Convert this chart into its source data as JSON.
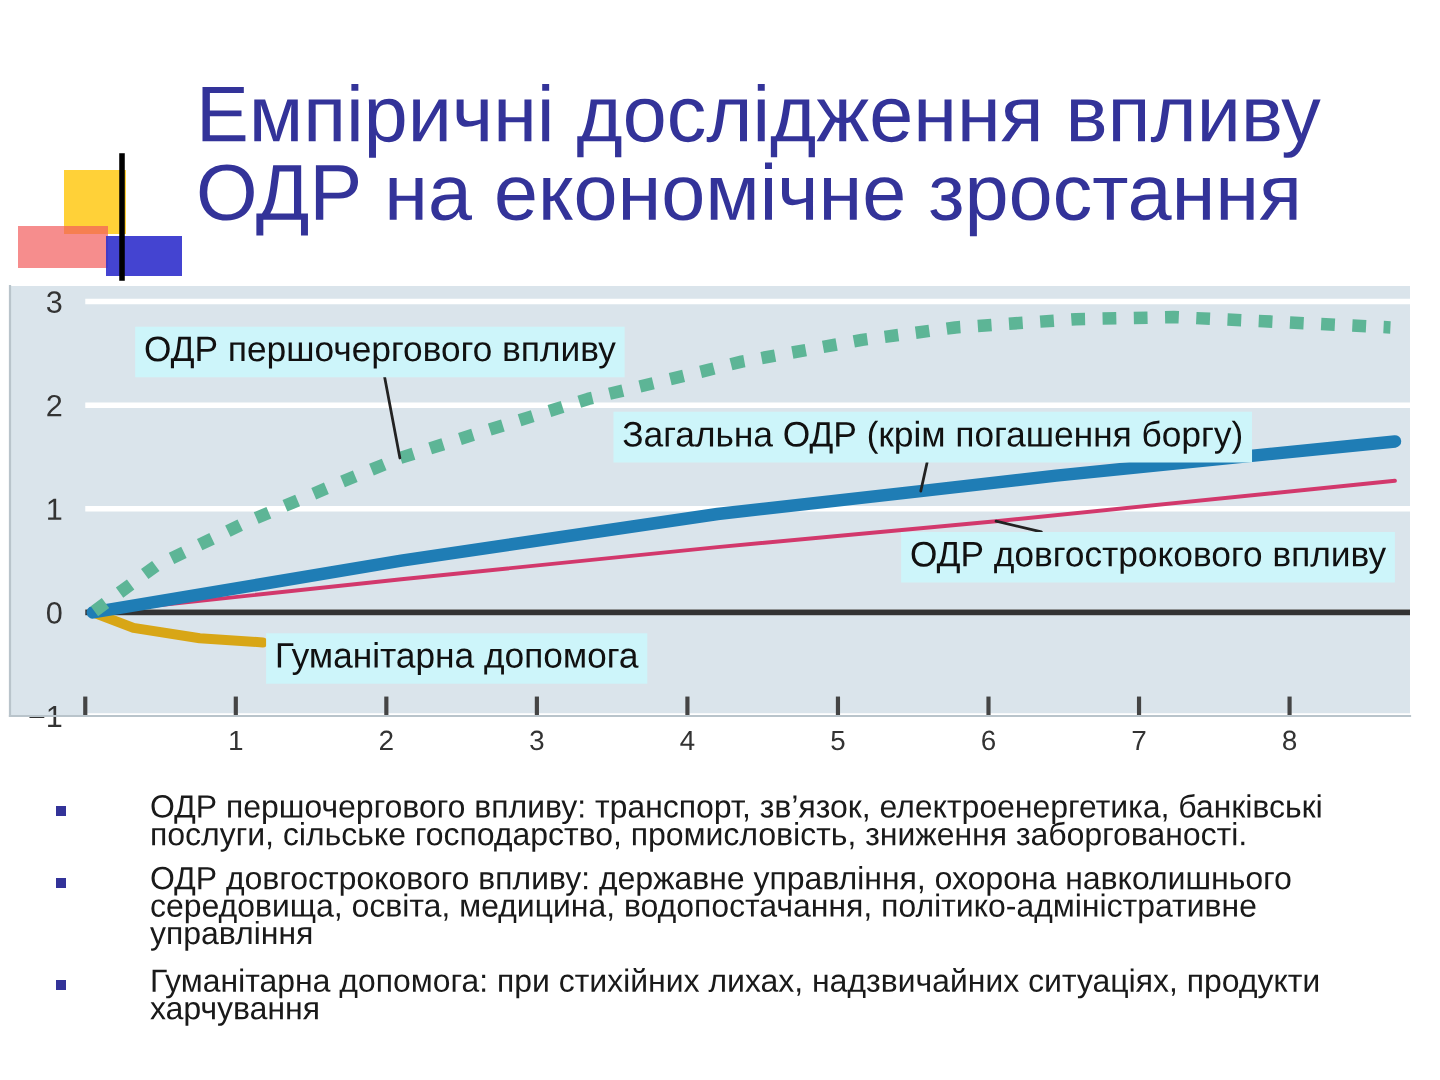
{
  "chart_data": {
    "type": "line",
    "title": "Емпіричні дослідження впливу\nОДР на економічне зростання",
    "xlim": [
      -0.5,
      8.8
    ],
    "xticks": [
      {
        "value": 0,
        "label": null
      },
      1,
      2,
      3,
      4,
      5,
      6,
      7,
      8
    ],
    "ylim": [
      -1,
      3.15
    ],
    "yticks": [
      {
        "value": -1,
        "label": "−1"
      },
      0,
      1,
      2,
      3
    ],
    "grid": "y",
    "line_style": "solid",
    "ref_lines": [
      {
        "axis": "y",
        "value": 0,
        "color": "#333333"
      }
    ],
    "series": [
      {
        "name": "ОДР першочергового впливу",
        "color": "#5db596",
        "line_style": "dashed",
        "x": [
          0.05,
          0.47,
          1.07,
          1.67,
          2.09,
          2.72,
          3.34,
          4.14,
          4.36,
          5.16,
          5.78,
          6.58,
          7.23,
          7.83,
          8.67
        ],
        "values": [
          0,
          0.45,
          0.87,
          1.24,
          1.49,
          1.78,
          2.06,
          2.34,
          2.42,
          2.63,
          2.75,
          2.83,
          2.85,
          2.81,
          2.75
        ]
      },
      {
        "name": "Загальна ОДР (крім погашення боргу)",
        "color": "#1f7db5",
        "x": [
          0.05,
          2.1,
          4.2,
          5.55,
          6.45,
          8.7
        ],
        "values": [
          0,
          0.5,
          0.95,
          1.17,
          1.32,
          1.65
        ]
      },
      {
        "name": "ОДР довгострокового впливу",
        "color": "#d2386c",
        "x": [
          0.05,
          2.1,
          4.2,
          6.05,
          8.7
        ],
        "values": [
          0,
          0.32,
          0.63,
          0.88,
          1.27
        ]
      },
      {
        "name": "Гуманітарна допомога",
        "color": "#d8a616",
        "x": [
          0.05,
          0.32,
          0.76,
          1.18
        ],
        "values": [
          0,
          -0.15,
          -0.25,
          -0.29
        ]
      }
    ],
    "annotations": [
      "ОДР першочергового впливу: транспорт, зв’язок, електроенергетика, банківські\nпослуги, сільське господарство, промисловість, зниження заборгованості.",
      "ОДР довгострокового впливу: державне управління, охорона навколишнього\nсередовища, освіта, медицина, водопостачання, політико-адміністративне\nуправління",
      "Гуманітарна допомога: при стихійних лихах, надзвичайних ситуаціях, продукти\nхарчування"
    ]
  }
}
